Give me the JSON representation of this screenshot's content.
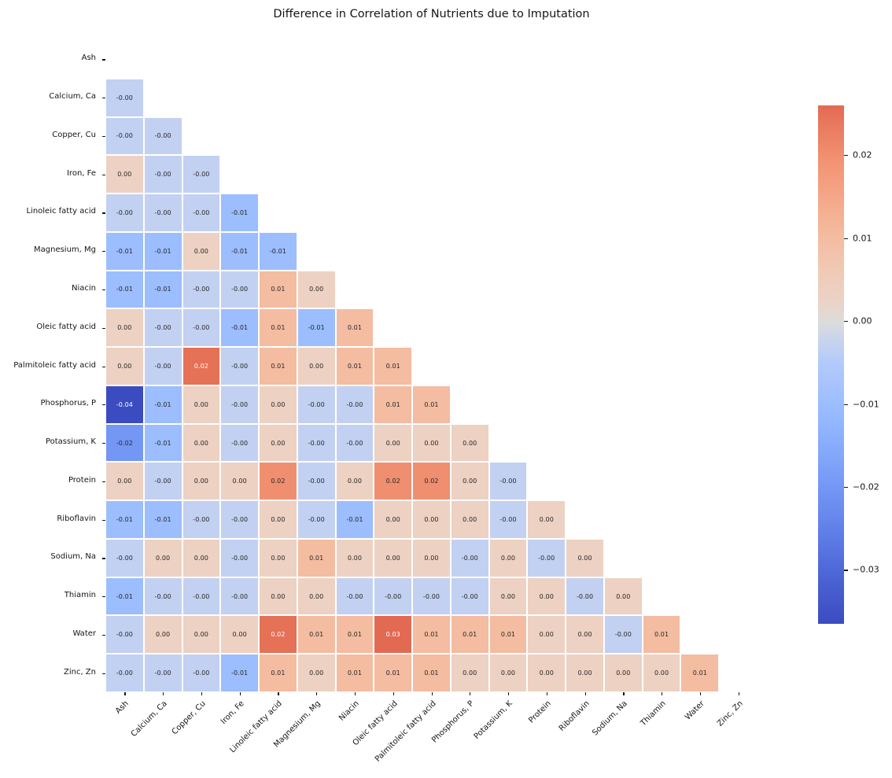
{
  "chart_data": {
    "type": "heatmap",
    "title": "Difference in Correlation of Nutrients due to Imputation",
    "categories": [
      "Ash",
      "Calcium, Ca",
      "Copper, Cu",
      "Iron, Fe",
      "Linoleic fatty acid",
      "Magnesium, Mg",
      "Niacin",
      "Oleic fatty acid",
      "Palmitoleic fatty acid",
      "Phosphorus, P",
      "Potassium, K",
      "Protein",
      "Riboflavin",
      "Sodium, Na",
      "Thiamin",
      "Water",
      "Zinc, Zn"
    ],
    "matrix": [
      [],
      [
        "-0.00"
      ],
      [
        "-0.00",
        "-0.00"
      ],
      [
        "0.00",
        "-0.00",
        "-0.00"
      ],
      [
        "-0.00",
        "-0.00",
        "-0.00",
        "-0.01"
      ],
      [
        "-0.01",
        "-0.01",
        "0.00",
        "-0.01",
        "-0.01"
      ],
      [
        "-0.01",
        "-0.01",
        "-0.00",
        "-0.00",
        "0.01",
        "0.00"
      ],
      [
        "0.00",
        "-0.00",
        "-0.00",
        "-0.01",
        "0.01",
        "-0.01",
        "0.01"
      ],
      [
        "0.00",
        "-0.00",
        "0.02",
        "-0.00",
        "0.01",
        "0.00",
        "0.01",
        "0.01"
      ],
      [
        "-0.04",
        "-0.01",
        "0.00",
        "-0.00",
        "0.00",
        "-0.00",
        "-0.00",
        "0.01",
        "0.01"
      ],
      [
        "-0.02",
        "-0.01",
        "0.00",
        "-0.00",
        "0.00",
        "-0.00",
        "-0.00",
        "0.00",
        "0.00",
        "0.00"
      ],
      [
        "0.00",
        "-0.00",
        "0.00",
        "0.00",
        "0.02",
        "-0.00",
        "0.00",
        "0.02",
        "0.02",
        "0.00",
        "-0.00"
      ],
      [
        "-0.01",
        "-0.01",
        "-0.00",
        "-0.00",
        "0.00",
        "-0.00",
        "-0.01",
        "0.00",
        "0.00",
        "0.00",
        "-0.00",
        "0.00"
      ],
      [
        "-0.00",
        "0.00",
        "0.00",
        "-0.00",
        "0.00",
        "0.01",
        "0.00",
        "0.00",
        "0.00",
        "-0.00",
        "0.00",
        "-0.00",
        "0.00"
      ],
      [
        "-0.01",
        "-0.00",
        "-0.00",
        "-0.00",
        "0.00",
        "0.00",
        "-0.00",
        "-0.00",
        "-0.00",
        "-0.00",
        "0.00",
        "0.00",
        "-0.00",
        "0.00"
      ],
      [
        "-0.00",
        "0.00",
        "0.00",
        "0.00",
        "0.02",
        "0.01",
        "0.01",
        "0.03",
        "0.01",
        "0.01",
        "0.01",
        "0.00",
        "0.00",
        "-0.00",
        "0.01"
      ],
      [
        "-0.00",
        "-0.00",
        "-0.00",
        "-0.01",
        "0.01",
        "0.00",
        "0.01",
        "0.01",
        "0.01",
        "0.00",
        "0.00",
        "0.00",
        "0.00",
        "0.00",
        "0.00",
        "0.01"
      ]
    ],
    "white_text_cells": [
      [
        9,
        0
      ],
      [
        8,
        2
      ],
      [
        15,
        4
      ],
      [
        15,
        7
      ]
    ],
    "colormap": "coolwarm",
    "center": 0,
    "vmin": -0.0365,
    "vmax": 0.026,
    "colorbar": {
      "ticks": [
        "0.02",
        "0.01",
        "0.00",
        "−0.01",
        "−0.02",
        "−0.03"
      ],
      "tick_values": [
        0.02,
        0.01,
        0.0,
        -0.01,
        -0.02,
        -0.03
      ],
      "color_top": "#e0664d",
      "color_mid": "#dddcdc",
      "color_bottom": "#3b4cc0"
    },
    "annot_color_dark": "#262626",
    "annot_color_light": "#ffffff",
    "grid_line_color": "#ffffff"
  }
}
